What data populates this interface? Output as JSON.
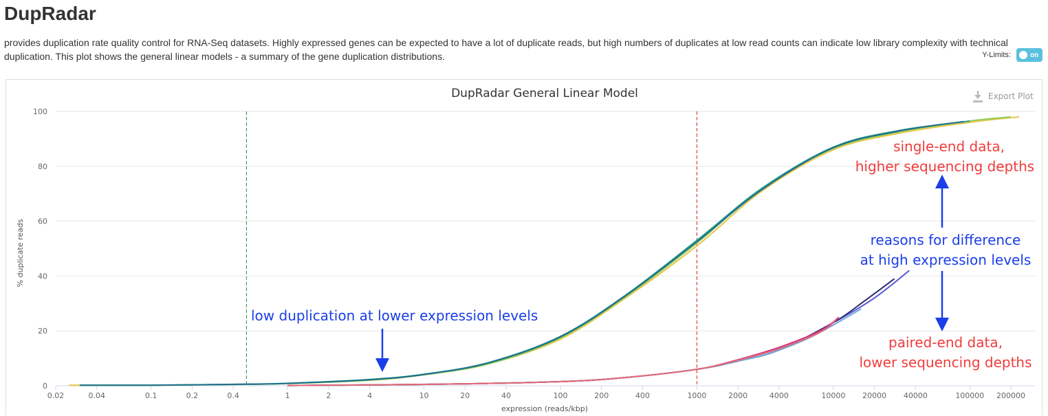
{
  "header": {
    "title": "DupRadar",
    "description": "provides duplication rate quality control for RNA-Seq datasets. Highly expressed genes can be expected to have a lot of duplicate reads, but high numbers of duplicates at low read counts can indicate low library complexity with technical duplication. This plot shows the general linear models - a summary of the gene duplication distributions."
  },
  "controls": {
    "ylimits_label": "Y-Limits:",
    "toggle_label": "on",
    "export_label": "Export Plot"
  },
  "chart_data": {
    "type": "line",
    "title": "DupRadar General Linear Model",
    "xlabel": "expression (reads/kbp)",
    "ylabel": "% duplicate reads",
    "x_scale": "log",
    "xlim": [
      0.02,
      300000
    ],
    "ylim": [
      0,
      100
    ],
    "x_ticks": [
      0.02,
      0.04,
      0.1,
      0.2,
      0.4,
      1,
      2,
      4,
      10,
      20,
      40,
      100,
      200,
      400,
      1000,
      2000,
      4000,
      10000,
      20000,
      40000,
      100000,
      200000
    ],
    "x_tick_labels": [
      "0.02",
      "0.04",
      "0.1",
      "0.2",
      "0.4",
      "1",
      "2",
      "4",
      "10",
      "20",
      "40",
      "100",
      "200",
      "400",
      "1000",
      "2000",
      "4000",
      "10000",
      "20000",
      "40000",
      "100000",
      "200000"
    ],
    "y_ticks": [
      0,
      20,
      40,
      60,
      80,
      100
    ],
    "y_tick_labels": [
      "0",
      "20",
      "40",
      "60",
      "80",
      "100"
    ],
    "vertical_lines": [
      {
        "x": 0.5,
        "color": "#2b8a3e",
        "style": "dashed"
      },
      {
        "x": 1000,
        "color": "#d62728",
        "style": "dashed"
      }
    ],
    "series": [
      {
        "color": "#e8c547",
        "x": [
          0.025,
          0.1,
          0.5,
          1,
          4,
          10,
          30,
          100,
          300,
          1000,
          3000,
          10000,
          30000,
          100000,
          230000
        ],
        "values": [
          0.2,
          0.2,
          0.5,
          0.8,
          2,
          4,
          8,
          17,
          32,
          51,
          71,
          86,
          92,
          96,
          98
        ]
      },
      {
        "color": "#8fce5a",
        "x": [
          0.03,
          0.1,
          0.5,
          1,
          4,
          10,
          30,
          100,
          300,
          1000,
          3000,
          10000,
          30000,
          100000,
          200000
        ],
        "values": [
          0.2,
          0.2,
          0.5,
          0.8,
          2,
          4,
          8,
          17.5,
          32.5,
          52,
          72,
          86.5,
          92.5,
          96.5,
          98
        ]
      },
      {
        "color": "#2a9d8f",
        "x": [
          0.03,
          0.1,
          0.5,
          1,
          4,
          10,
          30,
          100,
          300,
          1000,
          3000,
          10000,
          30000,
          100000
        ],
        "values": [
          0.2,
          0.2,
          0.6,
          0.9,
          2.3,
          4.2,
          8.5,
          18,
          33,
          53,
          72,
          87,
          93,
          96.5
        ]
      },
      {
        "color": "#1f6e8c",
        "x": [
          0.03,
          0.1,
          0.5,
          1,
          4,
          10,
          30,
          100,
          300,
          1000,
          3000,
          10000,
          30000,
          90000
        ],
        "values": [
          0.2,
          0.2,
          0.55,
          0.85,
          2.2,
          4.1,
          8.4,
          17.8,
          32.8,
          52.5,
          71.5,
          86.8,
          92.8,
          96.3
        ]
      },
      {
        "color": "#5b5bd6",
        "x": [
          1,
          10,
          100,
          300,
          1000,
          2000,
          4000,
          10000,
          20000,
          36000
        ],
        "values": [
          0.1,
          0.5,
          1.5,
          3,
          6,
          9,
          13,
          23,
          32,
          42
        ]
      },
      {
        "color": "#2d2a6e",
        "x": [
          1,
          10,
          100,
          300,
          1000,
          2000,
          4000,
          10000,
          17000,
          28000
        ],
        "values": [
          0.1,
          0.5,
          1.5,
          3,
          6,
          9,
          13,
          23,
          31,
          39
        ]
      },
      {
        "color": "#6fa8dc",
        "x": [
          1,
          10,
          100,
          300,
          1000,
          2000,
          3500,
          7000,
          16000
        ],
        "values": [
          0.1,
          0.5,
          1.5,
          3,
          6,
          9,
          12,
          18,
          28
        ]
      },
      {
        "color": "#d63384",
        "x": [
          1,
          10,
          100,
          300,
          1000,
          2000,
          4000,
          8000,
          11000
        ],
        "values": [
          0.1,
          0.5,
          1.5,
          3,
          6,
          9.5,
          14,
          20,
          25
        ]
      },
      {
        "color": "#e06c75",
        "x": [
          1,
          10,
          100,
          300,
          1000,
          2000,
          4000,
          8000,
          10500
        ],
        "values": [
          0.1,
          0.5,
          1.5,
          3,
          6,
          9.3,
          13.5,
          19.5,
          24
        ]
      }
    ],
    "annotations": [
      {
        "text": "low duplication at lower expression levels",
        "color": "#1a3ee8"
      },
      {
        "text": "single-end data,",
        "color": "#f03c3c"
      },
      {
        "text": "higher sequencing depths",
        "color": "#f03c3c"
      },
      {
        "text": "reasons for difference",
        "color": "#1a3ee8"
      },
      {
        "text": "at high expression levels",
        "color": "#1a3ee8"
      },
      {
        "text": "paired-end data,",
        "color": "#f03c3c"
      },
      {
        "text": "lower sequencing depths",
        "color": "#f03c3c"
      }
    ]
  }
}
